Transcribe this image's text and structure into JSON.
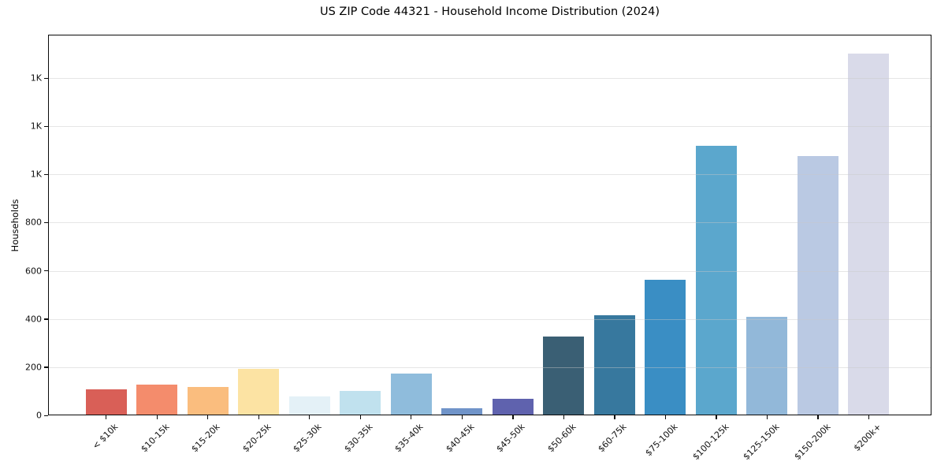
{
  "chart_data": {
    "type": "bar",
    "title": "US ZIP Code 44321 - Household Income Distribution (2024)",
    "xlabel": "",
    "ylabel": "Households",
    "categories": [
      "< $10k",
      "$10-15k",
      "$15-20k",
      "$20-25k",
      "$25-30k",
      "$30-35k",
      "$35-40k",
      "$40-45k",
      "$45-50k",
      "$50-60k",
      "$60-75k",
      "$75-100k",
      "$100-125k",
      "$125-150k",
      "$150-200k",
      "$200k+"
    ],
    "values": [
      108,
      127,
      118,
      192,
      78,
      100,
      174,
      28,
      68,
      328,
      415,
      563,
      1118,
      408,
      1076,
      1502
    ],
    "bar_colors": [
      "#d95f57",
      "#f48c6c",
      "#fabd7e",
      "#fce3a3",
      "#e4f1f7",
      "#c0e1ee",
      "#8fbcdc",
      "#7094c9",
      "#5f62ae",
      "#3a5f74",
      "#37789e",
      "#3a8ec4",
      "#5ba7cd",
      "#92b8d9",
      "#bac9e3",
      "#d9dae9"
    ],
    "yticks": {
      "values": [
        0,
        200,
        400,
        600,
        800,
        1000,
        1200,
        1400
      ],
      "labels": [
        "0",
        "200",
        "400",
        "600",
        "800",
        "1K",
        "1K",
        "1K"
      ]
    },
    "ylim": [
      0,
      1580
    ],
    "grid": "horizontal",
    "legend": "none"
  }
}
